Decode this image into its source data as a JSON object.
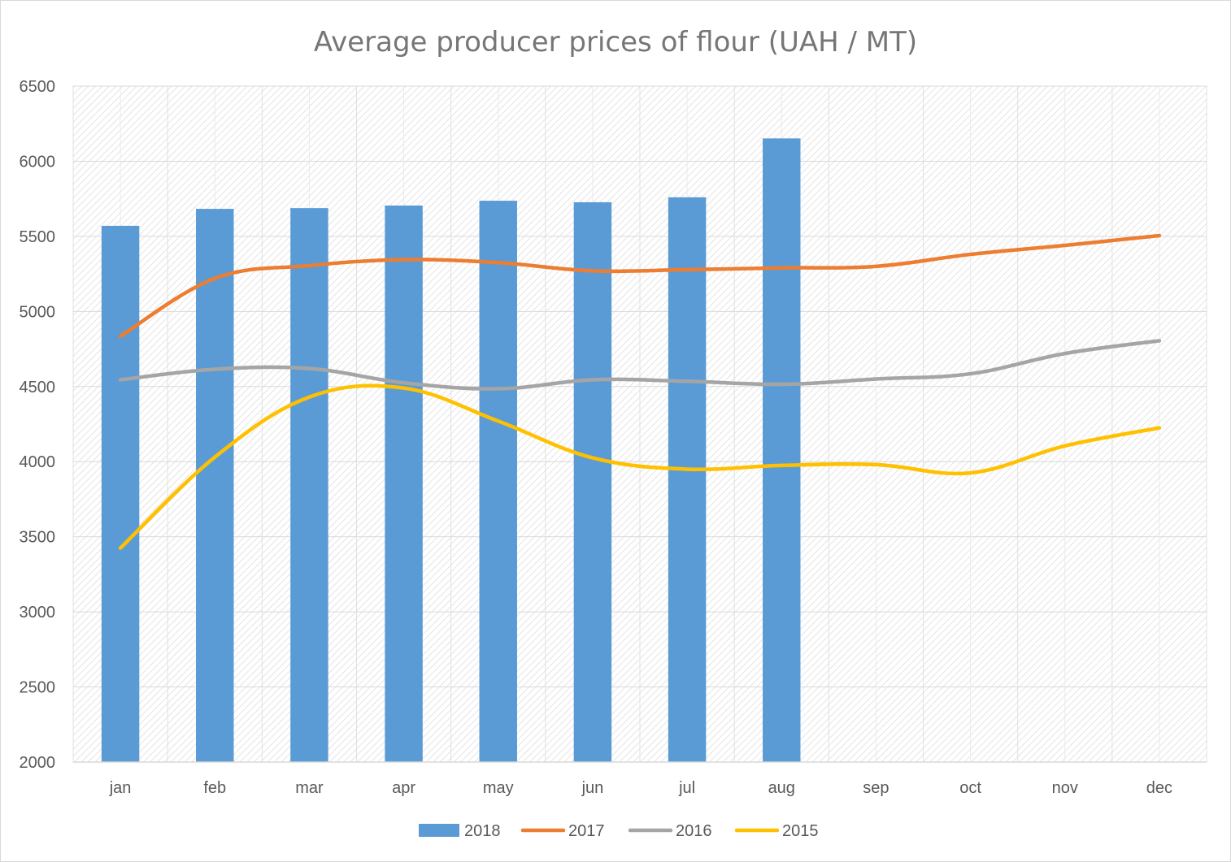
{
  "chart_data": {
    "type": "bar",
    "title": "Average producer prices of flour (UAH / MT)",
    "xlabel": "",
    "ylabel": "",
    "categories": [
      "jan",
      "feb",
      "mar",
      "apr",
      "may",
      "jun",
      "jul",
      "aug",
      "sep",
      "oct",
      "nov",
      "dec"
    ],
    "ylim": [
      2000,
      6500
    ],
    "yticks": [
      2000,
      2500,
      3000,
      3500,
      4000,
      4500,
      5000,
      5500,
      6000,
      6500
    ],
    "ytick_labels": [
      "2000",
      "2500",
      "3000",
      "3500",
      "4000",
      "4500",
      "5000",
      "5500",
      "6000",
      "6500"
    ],
    "grid": true,
    "legend_position": "bottom",
    "series": [
      {
        "name": "2018",
        "kind": "bar",
        "color": "#5b9bd5",
        "values": [
          5570,
          5683,
          5688,
          5705,
          5737,
          5727,
          5760,
          6152,
          null,
          null,
          null,
          null
        ]
      },
      {
        "name": "2017",
        "kind": "line",
        "color": "#ed7d31",
        "values": [
          4835,
          5220,
          5305,
          5345,
          5325,
          5270,
          5278,
          5290,
          5300,
          5380,
          5440,
          5505
        ]
      },
      {
        "name": "2016",
        "kind": "line",
        "color": "#a5a5a5",
        "values": [
          4545,
          4615,
          4620,
          4525,
          4485,
          4545,
          4535,
          4515,
          4550,
          4585,
          4720,
          4805
        ]
      },
      {
        "name": "2015",
        "kind": "line",
        "color": "#ffc000",
        "values": [
          3425,
          4030,
          4430,
          4490,
          4270,
          4025,
          3950,
          3975,
          3980,
          3925,
          4105,
          4225
        ]
      }
    ]
  }
}
